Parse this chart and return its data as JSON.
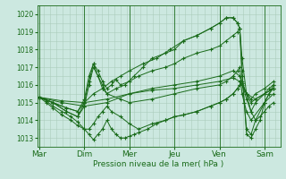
{
  "bg_color": "#cce8e0",
  "grid_color": "#aaccbb",
  "line_color": "#1a6b1a",
  "xlabel": "Pression niveau de la mer( hPa )",
  "ylim": [
    1012.5,
    1020.5
  ],
  "yticks": [
    1013,
    1014,
    1015,
    1016,
    1017,
    1018,
    1019,
    1020
  ],
  "days": [
    "Mar",
    "Dim",
    "Mer",
    "Jeu",
    "Ven",
    "Sam"
  ],
  "day_x": [
    0,
    1,
    2,
    3,
    4,
    5
  ],
  "xlim": [
    -0.05,
    5.35
  ],
  "lines": [
    {
      "x": [
        0,
        0.15,
        0.3,
        0.5,
        0.7,
        0.85,
        1.0,
        1.1,
        1.2,
        1.3,
        1.4,
        1.5,
        1.6,
        1.7,
        1.8,
        1.9,
        2.0,
        2.1,
        2.2,
        2.4,
        2.6,
        2.8,
        3.0,
        3.2,
        3.5,
        3.8,
        4.0,
        4.15,
        4.3,
        4.4,
        4.45,
        4.5,
        4.6,
        4.7,
        4.8,
        4.9,
        5.0,
        5.1,
        5.2
      ],
      "y": [
        1015.3,
        1015.1,
        1014.8,
        1014.5,
        1014.2,
        1013.9,
        1013.5,
        1013.2,
        1012.9,
        1013.2,
        1013.5,
        1014.0,
        1013.5,
        1013.2,
        1013.0,
        1013.0,
        1013.1,
        1013.2,
        1013.3,
        1013.5,
        1013.8,
        1014.0,
        1014.2,
        1014.3,
        1014.5,
        1014.8,
        1015.0,
        1015.2,
        1015.5,
        1015.8,
        1016.0,
        1016.1,
        1015.2,
        1014.5,
        1014.0,
        1014.2,
        1014.5,
        1014.8,
        1015.0
      ]
    },
    {
      "x": [
        0,
        0.15,
        0.3,
        0.5,
        0.7,
        0.85,
        1.0,
        1.1,
        1.2,
        1.3,
        1.4,
        1.5,
        1.6,
        1.8,
        2.0,
        2.2,
        2.5,
        2.8,
        3.0,
        3.2,
        3.5,
        3.8,
        4.0,
        4.15,
        4.3,
        4.4,
        4.45,
        4.5,
        4.6,
        4.7,
        4.8,
        5.0,
        5.2
      ],
      "y": [
        1015.3,
        1015.0,
        1014.7,
        1014.3,
        1014.0,
        1013.7,
        1013.5,
        1013.5,
        1013.8,
        1014.2,
        1014.5,
        1014.8,
        1014.5,
        1014.2,
        1013.8,
        1013.5,
        1013.8,
        1014.0,
        1014.2,
        1014.3,
        1014.5,
        1014.8,
        1015.0,
        1015.2,
        1015.5,
        1015.8,
        1016.0,
        1016.1,
        1015.5,
        1015.0,
        1015.2,
        1015.5,
        1015.8
      ]
    },
    {
      "x": [
        0,
        0.3,
        0.6,
        0.85,
        1.0,
        1.1,
        1.2,
        1.3,
        1.4,
        1.5,
        1.8,
        2.0,
        2.5,
        3.0,
        3.5,
        4.0,
        4.15,
        4.3,
        4.4,
        4.45,
        4.5,
        4.6,
        4.7,
        5.0,
        5.2
      ],
      "y": [
        1015.3,
        1015.0,
        1014.7,
        1014.5,
        1015.0,
        1016.2,
        1017.2,
        1016.5,
        1016.0,
        1015.5,
        1015.2,
        1015.0,
        1015.2,
        1015.5,
        1015.8,
        1016.0,
        1016.2,
        1016.5,
        1016.8,
        1017.0,
        1015.5,
        1014.5,
        1014.0,
        1015.0,
        1015.5
      ]
    },
    {
      "x": [
        0,
        0.3,
        0.6,
        0.85,
        1.0,
        1.1,
        1.2,
        1.3,
        1.4,
        1.5,
        1.6,
        1.7,
        1.8,
        2.0,
        2.2,
        2.5,
        2.8,
        3.0,
        3.2,
        3.5,
        3.8,
        4.0,
        4.15,
        4.3,
        4.4,
        4.45,
        4.5,
        4.6,
        4.7,
        4.8,
        5.0,
        5.1,
        5.2
      ],
      "y": [
        1015.3,
        1015.0,
        1014.7,
        1014.5,
        1015.2,
        1016.5,
        1017.2,
        1016.8,
        1016.2,
        1015.8,
        1016.0,
        1016.3,
        1016.0,
        1016.2,
        1016.5,
        1016.8,
        1017.0,
        1017.2,
        1017.5,
        1017.8,
        1018.0,
        1018.2,
        1018.5,
        1018.8,
        1019.0,
        1019.2,
        1017.5,
        1015.5,
        1014.5,
        1015.0,
        1015.5,
        1015.8,
        1016.0
      ]
    },
    {
      "x": [
        0,
        0.3,
        0.6,
        0.85,
        1.0,
        1.1,
        1.2,
        1.3,
        1.4,
        1.5,
        1.7,
        1.9,
        2.1,
        2.3,
        2.5,
        2.8,
        3.0,
        3.2,
        3.5,
        3.8,
        4.0,
        4.15,
        4.3,
        4.4,
        4.45,
        4.5,
        4.55,
        4.6,
        4.7,
        4.8,
        5.0,
        5.1,
        5.2
      ],
      "y": [
        1015.3,
        1015.0,
        1014.5,
        1014.2,
        1014.8,
        1016.0,
        1017.0,
        1016.5,
        1015.8,
        1015.5,
        1015.8,
        1016.0,
        1016.5,
        1017.0,
        1017.5,
        1017.8,
        1018.0,
        1018.5,
        1018.8,
        1019.2,
        1019.5,
        1019.8,
        1019.8,
        1019.5,
        1019.2,
        1016.5,
        1015.0,
        1013.5,
        1013.2,
        1014.0,
        1015.0,
        1015.5,
        1015.8
      ]
    },
    {
      "x": [
        0,
        0.3,
        0.6,
        0.85,
        1.0,
        1.2,
        1.4,
        1.6,
        1.8,
        2.0,
        2.3,
        2.6,
        2.9,
        3.2,
        3.5,
        3.8,
        4.0,
        4.15,
        4.3,
        4.4,
        4.45,
        4.5,
        4.55,
        4.6,
        4.7,
        4.8,
        4.9,
        5.0,
        5.1,
        5.2
      ],
      "y": [
        1015.3,
        1015.0,
        1014.5,
        1014.2,
        1015.0,
        1015.5,
        1015.8,
        1016.2,
        1016.5,
        1016.8,
        1017.2,
        1017.5,
        1018.0,
        1018.5,
        1018.8,
        1019.2,
        1019.5,
        1019.8,
        1019.8,
        1019.5,
        1019.2,
        1016.8,
        1015.0,
        1013.2,
        1013.0,
        1013.5,
        1014.0,
        1015.0,
        1015.5,
        1016.0
      ]
    },
    {
      "x": [
        0,
        0.5,
        1.0,
        1.5,
        2.0,
        2.5,
        3.0,
        3.5,
        4.0,
        4.3,
        4.45,
        4.5,
        4.6,
        4.7,
        4.8,
        5.0,
        5.2
      ],
      "y": [
        1015.3,
        1015.0,
        1014.8,
        1015.0,
        1015.5,
        1015.8,
        1016.0,
        1016.2,
        1016.5,
        1016.8,
        1016.5,
        1016.2,
        1015.5,
        1015.2,
        1015.5,
        1015.8,
        1016.2
      ]
    },
    {
      "x": [
        0,
        0.5,
        1.0,
        1.5,
        2.0,
        2.5,
        3.0,
        3.5,
        4.0,
        4.3,
        4.45,
        4.5,
        4.6,
        4.8,
        5.0,
        5.2
      ],
      "y": [
        1015.3,
        1015.1,
        1015.0,
        1015.2,
        1015.5,
        1015.7,
        1015.8,
        1016.0,
        1016.2,
        1016.4,
        1016.2,
        1016.0,
        1015.5,
        1015.2,
        1015.5,
        1015.8
      ]
    }
  ]
}
